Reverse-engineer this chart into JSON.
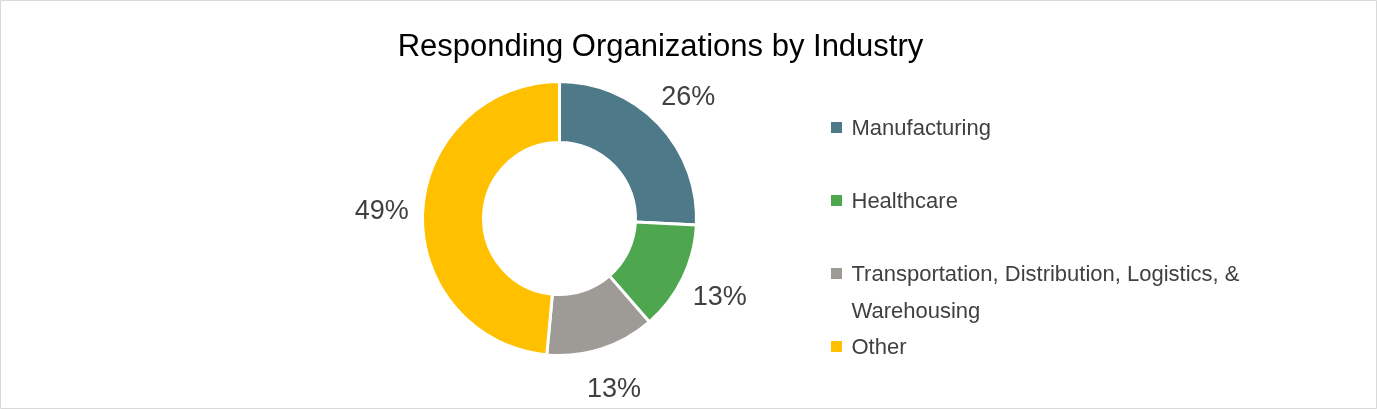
{
  "chart_data": {
    "type": "donut",
    "title": "Responding Organizations by Industry",
    "categories": [
      "Manufacturing",
      "Healthcare",
      "Transportation, Distribution, Logistics, & Warehousing",
      "Other"
    ],
    "values": [
      26,
      13,
      13,
      49
    ],
    "colors": [
      "#4e7989",
      "#4ea64e",
      "#9e9b96",
      "#ffc000"
    ],
    "value_labels": [
      "26%",
      "13%",
      "13%",
      "49%"
    ],
    "legend": "right"
  }
}
